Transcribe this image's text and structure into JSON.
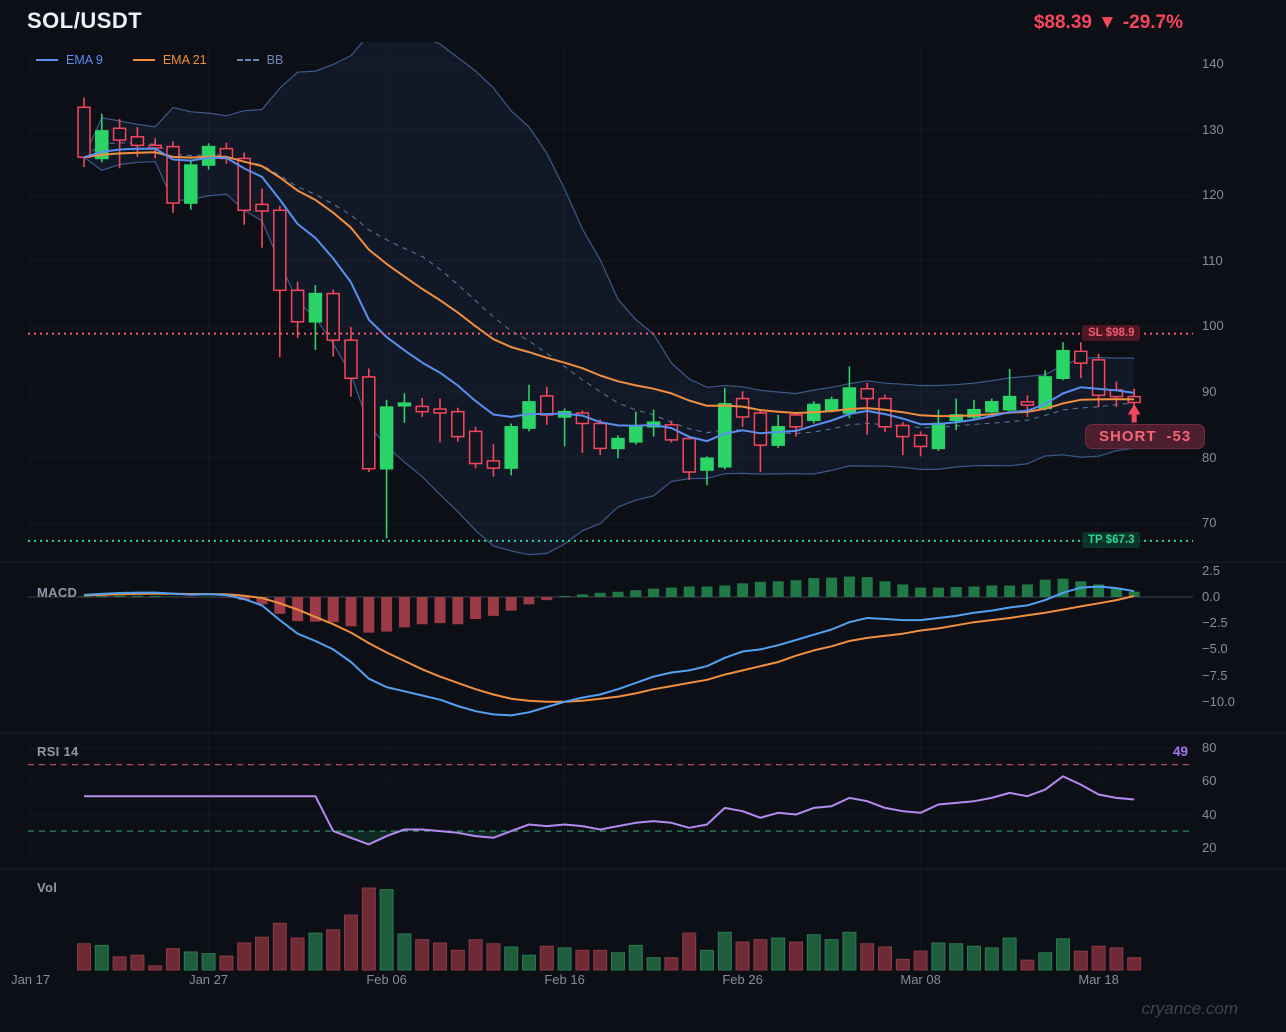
{
  "header": {
    "symbol": "SOL/USDT",
    "price": "$88.39",
    "direction_glyph": "▼",
    "change": "-29.7%"
  },
  "legend": [
    {
      "label": "EMA 9",
      "color": "#5a8ff0",
      "dash": false
    },
    {
      "label": "EMA 21",
      "color": "#ef8f3f",
      "dash": false
    },
    {
      "label": "BB",
      "color": "#6b87b4",
      "dash": true
    }
  ],
  "colors": {
    "up": "#2bd467",
    "down": "#f6465d",
    "ema9": "#5a8ff0",
    "ema21": "#ef8f3f",
    "bb_line": "#3c5a8a",
    "bb_mid": "#55709c",
    "bb_fill": "rgba(88,128,206,0.09)",
    "macd_line": "#54a0f2",
    "macd_signal": "#ef8f3f",
    "macd_hist_up": "#1f7a46",
    "macd_hist_down": "#9c3a45",
    "volume_up": "#1e5e3c",
    "volume_down": "#6e2b35",
    "rsi": "#b48af0",
    "rsi_value": "#a774f2",
    "sl": "#f05a73",
    "tp": "#2bd695",
    "price_text": "#f8465d"
  },
  "annotations": {
    "sl": {
      "label": "SL $98.9",
      "price": 98.9
    },
    "tp": {
      "label": "TP $67.3",
      "price": 67.3
    },
    "position_badge": {
      "text": "SHORT",
      "value": "-53"
    }
  },
  "panels": {
    "macd": {
      "title": "MACD",
      "ticks": [
        "2.5",
        "0.0",
        "−2.5",
        "−5.0",
        "−7.5",
        "−10.0"
      ]
    },
    "rsi": {
      "title": "RSI 14",
      "value": "49",
      "ticks": [
        80,
        60,
        40,
        20
      ],
      "overbought": 70,
      "oversold": 30
    },
    "volume": {
      "title": "Vol"
    }
  },
  "price_axis": {
    "ticks": [
      140,
      130,
      120,
      110,
      100,
      90,
      80,
      70
    ]
  },
  "time_axis": {
    "labels": [
      "Jan 17",
      "Jan 27",
      "Feb 06",
      "Feb 16",
      "Feb 26",
      "Mar 08",
      "Mar 18"
    ]
  },
  "watermark": "cryance.com",
  "chart_data": {
    "type": "candlestick",
    "symbol": "SOL/USDT",
    "last_price": 88.39,
    "change_pct": -29.7,
    "overlays": {
      "ema_fast": 9,
      "ema_slow": 21,
      "bollinger_period": 20,
      "bollinger_mult": 2
    },
    "stop_loss": 98.9,
    "take_profit": 67.3,
    "candles": {
      "columns": [
        "date",
        "open",
        "high",
        "low",
        "close",
        "volume"
      ],
      "rows": [
        [
          "Jan 20",
          133.4,
          134.9,
          124.3,
          125.8,
          32
        ],
        [
          "Jan 21",
          125.6,
          132.4,
          125.0,
          129.8,
          30
        ],
        [
          "Jan 22",
          130.2,
          131.6,
          124.1,
          128.4,
          16
        ],
        [
          "Jan 23",
          128.9,
          130.4,
          125.8,
          127.6,
          18
        ],
        [
          "Jan 24",
          127.6,
          128.7,
          125.6,
          127.2,
          5
        ],
        [
          "Jan 25",
          127.4,
          128.2,
          117.3,
          118.8,
          26
        ],
        [
          "Jan 26",
          118.8,
          125.2,
          117.8,
          124.6,
          22
        ],
        [
          "Jan 27",
          124.6,
          127.9,
          123.9,
          127.4,
          20
        ],
        [
          "Jan 28",
          127.1,
          128.0,
          124.8,
          125.6,
          17
        ],
        [
          "Jan 29",
          125.6,
          126.5,
          115.5,
          117.7,
          33
        ],
        [
          "Jan 30",
          118.6,
          121.0,
          112.0,
          117.6,
          40
        ],
        [
          "Jan 31",
          117.7,
          118.4,
          95.3,
          105.5,
          57
        ],
        [
          "Feb 01",
          105.5,
          106.8,
          98.2,
          100.7,
          39
        ],
        [
          "Feb 02",
          100.7,
          106.3,
          96.4,
          105.0,
          45
        ],
        [
          "Feb 03",
          105.0,
          105.6,
          95.4,
          97.9,
          49
        ],
        [
          "Feb 04",
          97.9,
          99.9,
          89.3,
          92.1,
          67
        ],
        [
          "Feb 05",
          92.3,
          93.6,
          77.8,
          78.3,
          100
        ],
        [
          "Feb 06",
          78.3,
          88.8,
          67.7,
          87.7,
          98
        ],
        [
          "Feb 07",
          87.9,
          89.8,
          85.3,
          88.3,
          44
        ],
        [
          "Feb 08",
          87.8,
          89.1,
          86.2,
          87.0,
          37
        ],
        [
          "Feb 09",
          87.4,
          89.0,
          82.3,
          86.8,
          33
        ],
        [
          "Feb 10",
          87.0,
          87.6,
          82.4,
          83.2,
          24
        ],
        [
          "Feb 11",
          84.0,
          84.7,
          78.4,
          79.1,
          37
        ],
        [
          "Feb 12",
          79.5,
          82.1,
          77.1,
          78.4,
          32
        ],
        [
          "Feb 13",
          78.4,
          85.2,
          77.3,
          84.7,
          28
        ],
        [
          "Feb 14",
          84.5,
          91.1,
          84.0,
          88.5,
          18
        ],
        [
          "Feb 15",
          89.4,
          90.8,
          85.0,
          86.5,
          29
        ],
        [
          "Feb 16",
          86.2,
          87.5,
          81.7,
          87.0,
          27
        ],
        [
          "Feb 17",
          86.8,
          87.2,
          80.7,
          85.2,
          24
        ],
        [
          "Feb 18",
          85.2,
          85.8,
          80.4,
          81.4,
          24
        ],
        [
          "Feb 19",
          81.4,
          83.4,
          79.9,
          82.9,
          21
        ],
        [
          "Feb 20",
          82.4,
          87.0,
          82.0,
          84.7,
          30
        ],
        [
          "Feb 21",
          84.7,
          87.3,
          83.2,
          85.4,
          15
        ],
        [
          "Feb 22",
          85.0,
          85.6,
          82.3,
          82.7,
          15
        ],
        [
          "Feb 23",
          82.9,
          83.3,
          76.6,
          77.8,
          45
        ],
        [
          "Feb 24",
          78.1,
          80.2,
          75.8,
          79.9,
          24
        ],
        [
          "Feb 25",
          78.6,
          90.6,
          78.2,
          88.2,
          46
        ],
        [
          "Feb 26",
          89.0,
          90.1,
          84.7,
          86.2,
          34
        ],
        [
          "Feb 27",
          86.8,
          87.4,
          77.8,
          81.9,
          37
        ],
        [
          "Feb 28",
          81.9,
          86.5,
          81.5,
          84.7,
          39
        ],
        [
          "Mar 01",
          86.5,
          86.9,
          83.2,
          84.7,
          34
        ],
        [
          "Mar 02",
          85.7,
          88.6,
          85.2,
          88.1,
          43
        ],
        [
          "Mar 03",
          87.3,
          89.3,
          86.9,
          88.8,
          37
        ],
        [
          "Mar 04",
          86.8,
          93.9,
          86.0,
          90.6,
          46
        ],
        [
          "Mar 05",
          90.5,
          91.4,
          83.5,
          89.0,
          32
        ],
        [
          "Mar 06",
          89.0,
          89.6,
          83.9,
          84.7,
          28
        ],
        [
          "Mar 07",
          84.9,
          85.4,
          80.4,
          83.2,
          13
        ],
        [
          "Mar 08",
          83.4,
          84.0,
          80.2,
          81.7,
          23
        ],
        [
          "Mar 09",
          81.4,
          87.3,
          81.0,
          85.2,
          33
        ],
        [
          "Mar 10",
          85.7,
          89.0,
          84.2,
          86.5,
          32
        ],
        [
          "Mar 11",
          86.2,
          88.8,
          85.8,
          87.3,
          29
        ],
        [
          "Mar 12",
          87.0,
          89.0,
          86.8,
          88.5,
          27
        ],
        [
          "Mar 13",
          87.3,
          93.5,
          87.0,
          89.3,
          39
        ],
        [
          "Mar 14",
          88.5,
          89.5,
          86.2,
          88.0,
          12
        ],
        [
          "Mar 15",
          87.5,
          93.3,
          87.2,
          92.3,
          21
        ],
        [
          "Mar 16",
          92.1,
          97.6,
          91.8,
          96.3,
          38
        ],
        [
          "Mar 17",
          96.2,
          97.6,
          92.1,
          94.4,
          23
        ],
        [
          "Mar 18",
          94.9,
          95.8,
          87.7,
          89.5,
          29
        ],
        [
          "Mar 19",
          90.3,
          91.6,
          87.7,
          89.3,
          27
        ],
        [
          "Mar 20",
          89.3,
          90.5,
          87.7,
          88.4,
          15
        ]
      ]
    },
    "macd": {
      "line": [
        0.2,
        0.3,
        0.38,
        0.42,
        0.42,
        0.32,
        0.22,
        0.28,
        0.18,
        -0.2,
        -0.8,
        -2.2,
        -3.5,
        -4.2,
        -5.0,
        -6.2,
        -7.8,
        -8.6,
        -9.0,
        -9.4,
        -9.8,
        -10.4,
        -10.9,
        -11.2,
        -11.3,
        -11.0,
        -10.5,
        -10.0,
        -9.6,
        -9.3,
        -8.8,
        -8.2,
        -7.6,
        -7.2,
        -7.0,
        -6.6,
        -5.8,
        -5.2,
        -5.0,
        -4.6,
        -4.1,
        -3.6,
        -3.1,
        -2.4,
        -2.0,
        -2.1,
        -2.2,
        -2.2,
        -2.0,
        -1.8,
        -1.5,
        -1.3,
        -1.0,
        -0.8,
        -0.3,
        0.4,
        0.9,
        1.0,
        0.85,
        0.55
      ],
      "signal": [
        0.15,
        0.2,
        0.26,
        0.3,
        0.32,
        0.31,
        0.29,
        0.28,
        0.26,
        0.12,
        -0.1,
        -0.6,
        -1.2,
        -1.9,
        -2.6,
        -3.4,
        -4.4,
        -5.3,
        -6.1,
        -6.9,
        -7.6,
        -8.2,
        -8.8,
        -9.3,
        -9.7,
        -9.9,
        -10.0,
        -10.0,
        -9.9,
        -9.7,
        -9.5,
        -9.2,
        -8.8,
        -8.5,
        -8.2,
        -7.9,
        -7.4,
        -7.0,
        -6.6,
        -6.2,
        -5.6,
        -5.1,
        -4.7,
        -4.2,
        -3.9,
        -3.7,
        -3.5,
        -3.2,
        -3.0,
        -2.7,
        -2.4,
        -2.2,
        -2.0,
        -1.75,
        -1.5,
        -1.2,
        -0.9,
        -0.6,
        -0.3,
        0.1
      ],
      "histogram": [
        0.06,
        0.1,
        0.12,
        0.12,
        0.1,
        0.05,
        -0.05,
        0.02,
        -0.06,
        -0.3,
        -0.7,
        -1.6,
        -2.3,
        -2.35,
        -2.4,
        -2.8,
        -3.4,
        -3.3,
        -2.9,
        -2.6,
        -2.5,
        -2.6,
        -2.1,
        -1.8,
        -1.3,
        -0.7,
        -0.3,
        0.1,
        0.25,
        0.4,
        0.5,
        0.65,
        0.8,
        0.9,
        1.0,
        1.0,
        1.1,
        1.3,
        1.45,
        1.5,
        1.6,
        1.8,
        1.85,
        1.95,
        1.9,
        1.5,
        1.2,
        0.9,
        0.9,
        0.95,
        1.0,
        1.1,
        1.1,
        1.2,
        1.65,
        1.75,
        1.5,
        1.2,
        0.8,
        0.5
      ]
    },
    "rsi": [
      51,
      51,
      51,
      51,
      51,
      51,
      51,
      51,
      51,
      51,
      51,
      51,
      51,
      51,
      30,
      26,
      22,
      27,
      31,
      31,
      30,
      29,
      27,
      26,
      30,
      34,
      33,
      34,
      33,
      31,
      33,
      35,
      36,
      35,
      32,
      34,
      44,
      42,
      38,
      41,
      40,
      44,
      45,
      50,
      48,
      44,
      42,
      41,
      46,
      47,
      48,
      50,
      53,
      51,
      55,
      63,
      58,
      52,
      50,
      49
    ]
  }
}
